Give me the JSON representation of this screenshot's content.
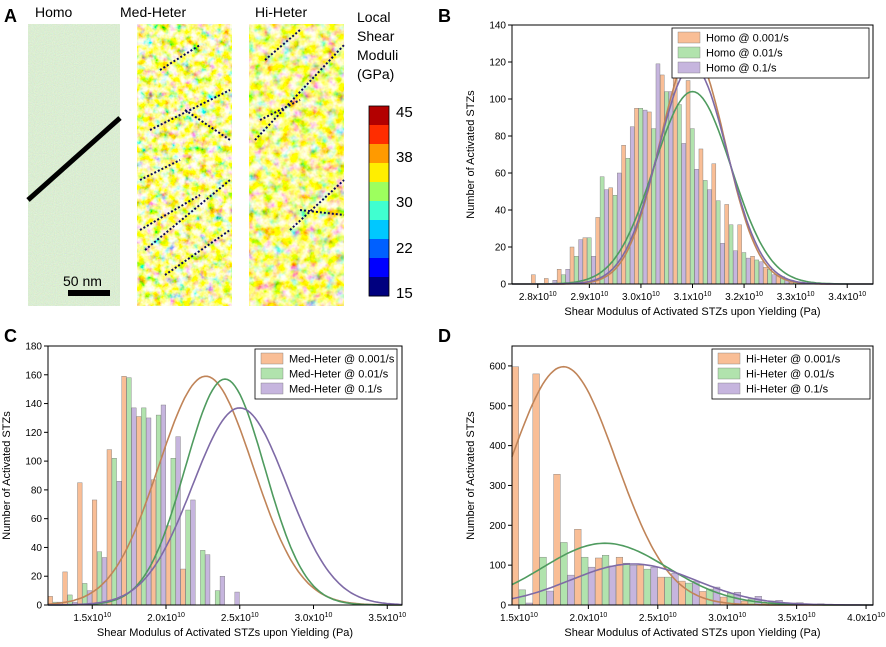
{
  "colors": {
    "s1": "#f9be96",
    "s2": "#b1e3ad",
    "s3": "#c6b5de",
    "s1_curve": "#c08458",
    "s2_curve": "#4f9b5f",
    "s3_curve": "#7e6aa6",
    "colormap": [
      "#00007f",
      "#0000ff",
      "#0060ff",
      "#00c8ff",
      "#40ffd0",
      "#9dff5e",
      "#ffee00",
      "#ff9a00",
      "#ff2d00",
      "#b30000"
    ]
  },
  "panel_a": {
    "letter": "A",
    "titles": [
      "Homo",
      "Med-Heter",
      "Hi-Heter"
    ],
    "scalebar_label": "50 nm",
    "colorbar": {
      "title_lines": [
        "Local",
        "Shear",
        "Moduli",
        "(GPa)"
      ],
      "ticks": [
        "45",
        "38",
        "30",
        "22",
        "15"
      ]
    }
  },
  "chart_data": [
    {
      "panel": "B",
      "type": "bar",
      "xlabel": "Shear Modulus of Activated STZs upon Yielding (Pa)",
      "ylabel": "Number of Activated STZs",
      "xlim": [
        2.75,
        3.45
      ],
      "ylim": [
        0,
        140
      ],
      "yticks": [
        0,
        20,
        40,
        60,
        80,
        100,
        120,
        140
      ],
      "xticks": [
        2.8,
        2.9,
        3.0,
        3.1,
        3.2,
        3.3,
        3.4
      ],
      "xtick_labels": [
        "2.8x10^10",
        "2.9x10^10",
        "3.0x10^10",
        "3.1x10^10",
        "3.2x10^10",
        "3.3x10^10",
        "3.4x10^10"
      ],
      "bin_width": 0.025,
      "x": [
        2.8,
        2.825,
        2.85,
        2.875,
        2.9,
        2.925,
        2.95,
        2.975,
        3.0,
        3.025,
        3.05,
        3.075,
        3.1,
        3.125,
        3.15,
        3.175,
        3.2,
        3.225,
        3.25,
        3.275,
        3.3,
        3.325,
        3.35,
        3.375
      ],
      "legend_position": "top-right",
      "series": [
        {
          "name": "Homo @ 0.001/s",
          "values": [
            5,
            3,
            8,
            20,
            25,
            36,
            52,
            75,
            95,
            93,
            113,
            125,
            110,
            73,
            65,
            43,
            32,
            15,
            9,
            5,
            1,
            0,
            0,
            0
          ],
          "curve": {
            "mean": 3.1,
            "sd": 0.064,
            "peak": 125
          }
        },
        {
          "name": "Homo @ 0.01/s",
          "values": [
            0,
            0,
            5,
            15,
            25,
            58,
            48,
            68,
            95,
            84,
            104,
            97,
            84,
            56,
            45,
            32,
            17,
            13,
            8,
            4,
            1,
            0,
            0,
            0
          ],
          "curve": {
            "mean": 3.1,
            "sd": 0.075,
            "peak": 104
          }
        },
        {
          "name": "Homo @ 0.1/s",
          "values": [
            0,
            2,
            8,
            24,
            15,
            51,
            60,
            85,
            94,
            119,
            104,
            76,
            62,
            51,
            22,
            18,
            14,
            12,
            5,
            2,
            1,
            0,
            0,
            0
          ],
          "curve": {
            "mean": 3.1,
            "sd": 0.067,
            "peak": 118
          }
        }
      ]
    },
    {
      "panel": "C",
      "type": "bar",
      "xlabel": "Shear Modulus of Activated STZs upon Yielding (Pa)",
      "ylabel": "Number of Activated STZs",
      "xlim": [
        1.2,
        3.6
      ],
      "ylim": [
        0,
        180
      ],
      "yticks": [
        0,
        20,
        40,
        60,
        80,
        100,
        120,
        140,
        160,
        180
      ],
      "xticks": [
        1.5,
        2.0,
        2.5,
        3.0,
        3.5
      ],
      "xtick_labels": [
        "1.5x10^10",
        "2.0x10^10",
        "2.5x10^10",
        "3.0x10^10",
        "3.5x10^10"
      ],
      "bin_width": 0.1,
      "x": [
        1.25,
        1.35,
        1.45,
        1.55,
        1.65,
        1.75,
        1.85,
        1.95,
        2.05,
        2.15,
        2.25,
        2.35,
        2.45,
        2.55,
        2.65,
        2.75,
        2.85,
        2.95,
        3.05,
        3.15,
        3.25,
        3.35,
        3.45
      ],
      "legend_position": "top-right",
      "series": [
        {
          "name": "Med-Heter @ 0.001/s",
          "values": [
            6,
            23,
            85,
            73,
            108,
            159,
            131,
            87,
            55,
            25,
            0,
            0,
            0,
            0,
            0,
            0,
            0,
            0,
            0,
            0,
            0,
            0,
            0
          ],
          "curve": {
            "mean": 2.27,
            "sd": 0.32,
            "peak": 159
          }
        },
        {
          "name": "Med-Heter @ 0.01/s",
          "values": [
            2,
            7,
            15,
            37,
            102,
            158,
            137,
            132,
            102,
            66,
            38,
            10,
            0,
            0,
            0,
            0,
            0,
            0,
            0,
            0,
            0,
            0,
            0
          ],
          "curve": {
            "mean": 2.4,
            "sd": 0.27,
            "peak": 157
          }
        },
        {
          "name": "Med-Heter @ 0.1/s",
          "values": [
            2,
            2,
            10,
            33,
            86,
            137,
            130,
            139,
            117,
            73,
            35,
            20,
            9,
            0,
            0,
            0,
            0,
            0,
            0,
            0,
            0,
            0,
            0
          ],
          "curve": {
            "mean": 2.5,
            "sd": 0.32,
            "peak": 137
          }
        }
      ]
    },
    {
      "panel": "D",
      "type": "bar",
      "xlabel": "Shear Modulus of Activated STZs upon Yielding (Pa)",
      "ylabel": "Number of Activated STZs",
      "xlim": [
        1.45,
        4.05
      ],
      "ylim": [
        0,
        650
      ],
      "yticks": [
        0,
        100,
        200,
        300,
        400,
        500,
        600
      ],
      "xticks": [
        1.5,
        2.0,
        2.5,
        3.0,
        3.5,
        4.0
      ],
      "xtick_labels": [
        "1.5x10^10",
        "2.0x10^10",
        "2.5x10^10",
        "3.0x10^10",
        "3.5x10^10",
        "4.0x10^10"
      ],
      "bin_width": 0.15,
      "x": [
        1.525,
        1.675,
        1.825,
        1.975,
        2.125,
        2.275,
        2.425,
        2.575,
        2.725,
        2.875,
        3.025,
        3.175,
        3.325,
        3.475,
        3.625,
        3.775
      ],
      "legend_position": "top-right",
      "series": [
        {
          "name": "Hi-Heter @ 0.001/s",
          "values": [
            598,
            580,
            328,
            190,
            118,
            120,
            100,
            70,
            60,
            34,
            20,
            10,
            5,
            3,
            1,
            1
          ],
          "curve": {
            "mean": 1.82,
            "sd": 0.38,
            "peak": 598
          }
        },
        {
          "name": "Hi-Heter @ 0.01/s",
          "values": [
            38,
            120,
            157,
            120,
            125,
            105,
            90,
            70,
            55,
            40,
            30,
            15,
            10,
            5,
            2,
            1
          ],
          "curve": {
            "mean": 2.12,
            "sd": 0.45,
            "peak": 155
          }
        },
        {
          "name": "Hi-Heter @ 0.1/s",
          "values": [
            5,
            35,
            75,
            95,
            98,
            100,
            95,
            80,
            60,
            45,
            32,
            22,
            12,
            6,
            3,
            1
          ],
          "curve": {
            "mean": 2.32,
            "sd": 0.45,
            "peak": 103
          }
        }
      ]
    }
  ]
}
